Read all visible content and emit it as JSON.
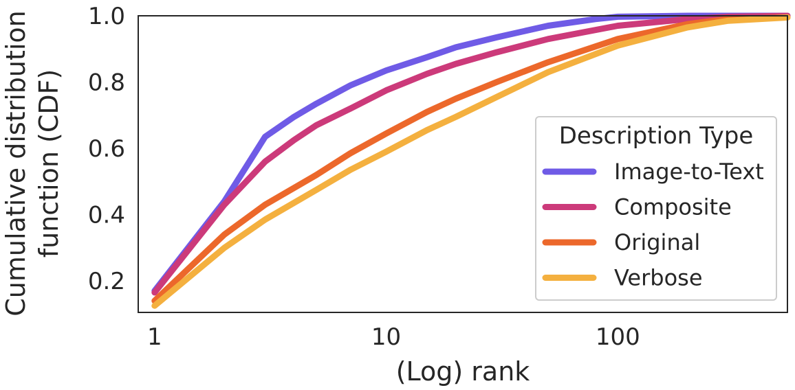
{
  "chart_data": {
    "type": "line",
    "xscale": "log",
    "xlim": [
      0.85,
      540
    ],
    "ylim": [
      0.105,
      1.0
    ],
    "xticks": [
      1,
      10,
      100
    ],
    "xtick_labels": [
      "1",
      "10",
      "100"
    ],
    "yticks": [
      0.2,
      0.4,
      0.6,
      0.8,
      1.0
    ],
    "ytick_labels": [
      "0.2",
      "0.4",
      "0.6",
      "0.8",
      "1.0"
    ],
    "xlabel": "(Log) rank",
    "ylabel_lines": [
      "Cumulative distribution",
      "function (CDF)"
    ],
    "grid": false,
    "legend": {
      "title": "Description Type",
      "position": "lower-right"
    },
    "series": [
      {
        "name": "Image-to-Text",
        "color": "#6f5be6",
        "points": [
          [
            1,
            0.17
          ],
          [
            2,
            0.44
          ],
          [
            3,
            0.635
          ],
          [
            4,
            0.695
          ],
          [
            5,
            0.735
          ],
          [
            7,
            0.79
          ],
          [
            10,
            0.835
          ],
          [
            15,
            0.875
          ],
          [
            20,
            0.905
          ],
          [
            30,
            0.935
          ],
          [
            50,
            0.97
          ],
          [
            80,
            0.99
          ],
          [
            100,
            0.997
          ],
          [
            200,
            1.0
          ],
          [
            540,
            1.0
          ]
        ]
      },
      {
        "name": "Composite",
        "color": "#cc3a7a",
        "points": [
          [
            1,
            0.165
          ],
          [
            2,
            0.43
          ],
          [
            3,
            0.56
          ],
          [
            4,
            0.625
          ],
          [
            5,
            0.67
          ],
          [
            7,
            0.72
          ],
          [
            10,
            0.775
          ],
          [
            15,
            0.825
          ],
          [
            20,
            0.855
          ],
          [
            30,
            0.89
          ],
          [
            50,
            0.93
          ],
          [
            100,
            0.97
          ],
          [
            200,
            0.99
          ],
          [
            300,
            0.997
          ],
          [
            540,
            1.0
          ]
        ]
      },
      {
        "name": "Original",
        "color": "#ec682b",
        "points": [
          [
            1,
            0.14
          ],
          [
            2,
            0.34
          ],
          [
            3,
            0.43
          ],
          [
            5,
            0.52
          ],
          [
            7,
            0.585
          ],
          [
            10,
            0.645
          ],
          [
            15,
            0.71
          ],
          [
            20,
            0.75
          ],
          [
            30,
            0.8
          ],
          [
            50,
            0.86
          ],
          [
            100,
            0.93
          ],
          [
            200,
            0.975
          ],
          [
            300,
            0.99
          ],
          [
            540,
            0.995
          ]
        ]
      },
      {
        "name": "Verbose",
        "color": "#f4b03f",
        "points": [
          [
            1,
            0.125
          ],
          [
            2,
            0.3
          ],
          [
            3,
            0.385
          ],
          [
            5,
            0.475
          ],
          [
            7,
            0.535
          ],
          [
            10,
            0.59
          ],
          [
            15,
            0.655
          ],
          [
            20,
            0.695
          ],
          [
            30,
            0.755
          ],
          [
            50,
            0.83
          ],
          [
            100,
            0.91
          ],
          [
            200,
            0.965
          ],
          [
            300,
            0.985
          ],
          [
            540,
            0.995
          ]
        ]
      }
    ]
  }
}
